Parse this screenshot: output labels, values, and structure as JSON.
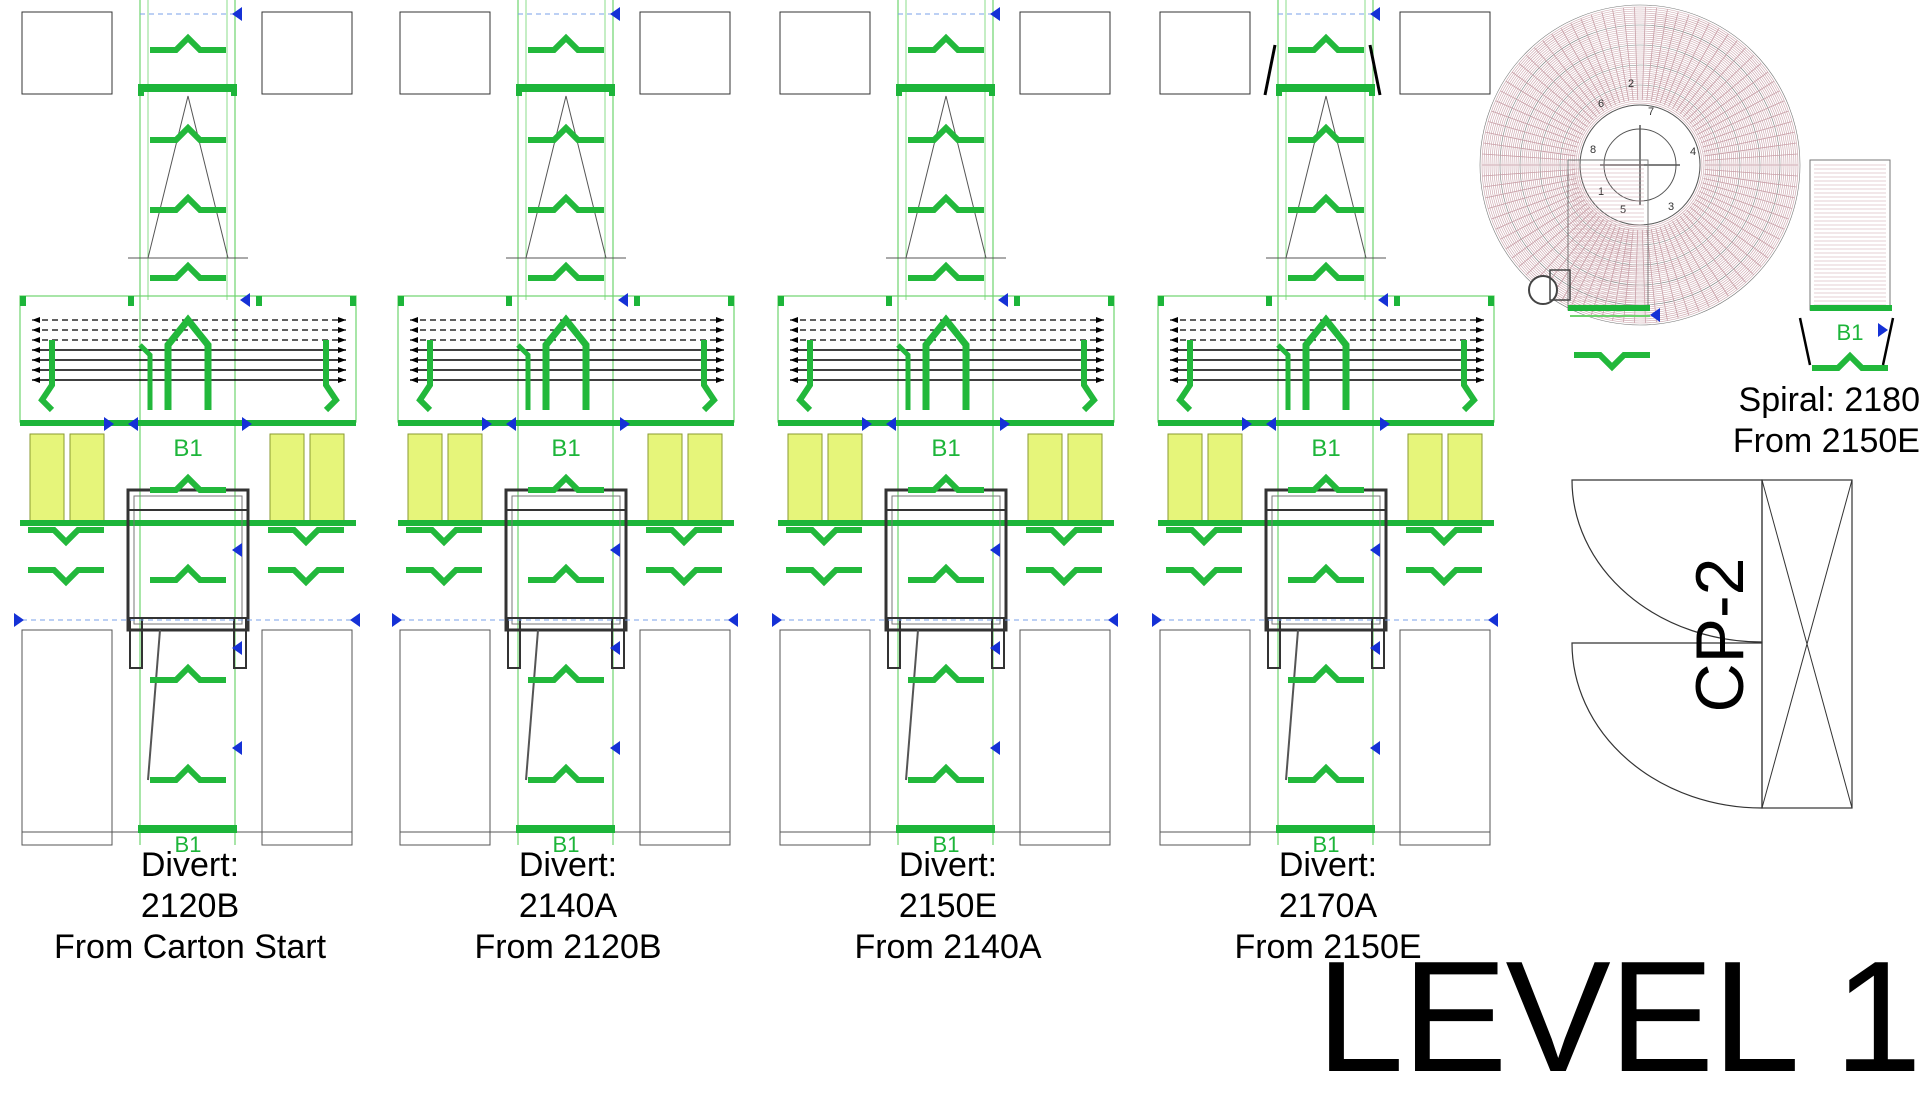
{
  "diverts": [
    {
      "label": "Divert:",
      "id": "2120B",
      "source": "From Carton Start",
      "zone": "B1"
    },
    {
      "label": "Divert:",
      "id": "2140A",
      "source": "From 2120B",
      "zone": "B1"
    },
    {
      "label": "Divert:",
      "id": "2150E",
      "source": "From 2140A",
      "zone": "B1"
    },
    {
      "label": "Divert:",
      "id": "2170A",
      "source": "From 2150E",
      "zone": "B1"
    }
  ],
  "spiral": {
    "line1": "Spiral: 2180",
    "line2": "From 2150E",
    "zone": "B1",
    "hub_numbers": [
      "1",
      "2",
      "3",
      "4",
      "5",
      "6",
      "7",
      "8"
    ]
  },
  "cp_label": "CP-2",
  "level_title": "LEVEL 1",
  "colors": {
    "conveyor_green": "#1db53a",
    "pusher_green": "#22b83b",
    "thin_green": "#6ed46e",
    "yellow_pad": "#e6f57a",
    "direction_marker": "#1531d6",
    "spiral_rollers": "#c9a0a8",
    "frame_gray": "#555555",
    "line_black": "#000000"
  }
}
